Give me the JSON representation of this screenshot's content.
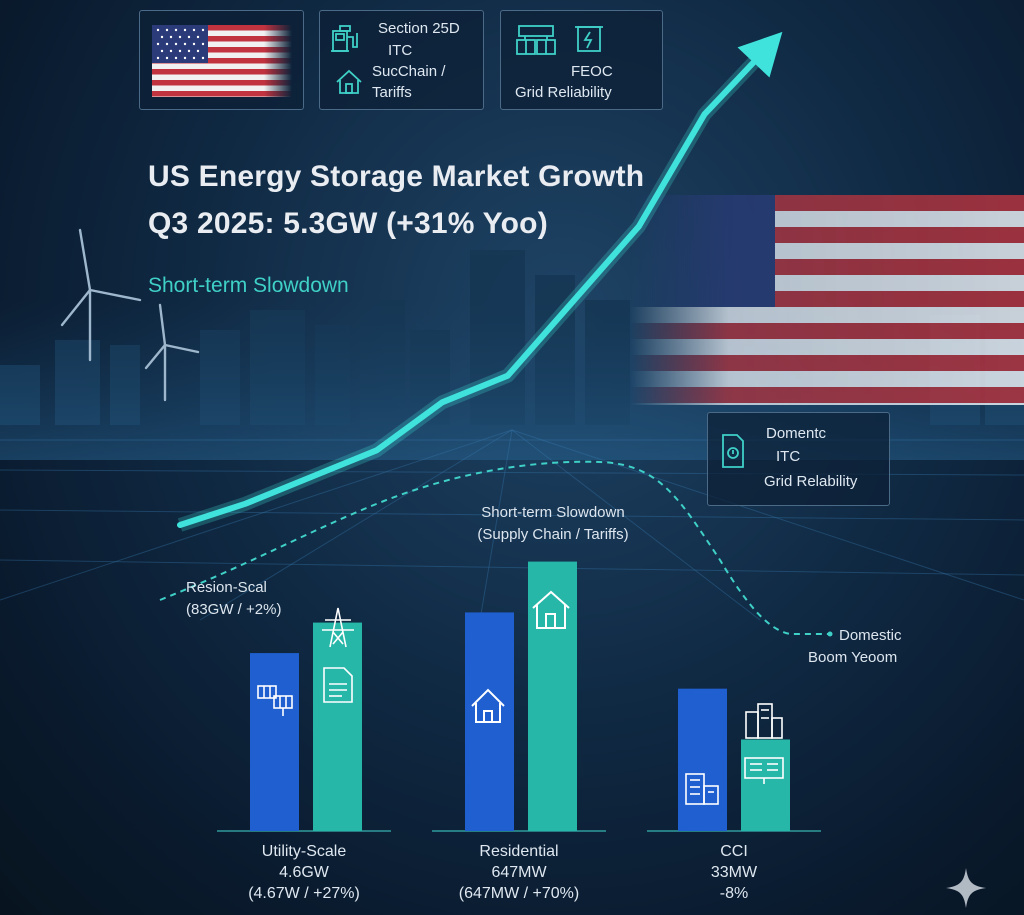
{
  "header_boxes": {
    "policy": {
      "line1": "Section 25D",
      "line2": "ITC",
      "line3": "SucChain /",
      "line4": "Tariffs"
    },
    "grid": {
      "line1": "FEOC",
      "line2": "Grid Reliability"
    }
  },
  "callout_right": {
    "line1": "Domentc",
    "line2": "ITC",
    "line3": "Grid Relability"
  },
  "title": {
    "line1": "US Energy Storage Market Growth",
    "line2": "Q3 2025: 5.3GW (+31% Yoo)"
  },
  "subtitle": "Short-term Slowdown",
  "annotations": {
    "left": {
      "line1": "Resion-Scal",
      "line2": "(83GW / +2%)"
    },
    "center": {
      "line1": "Short-term Slowdown",
      "line2": "(Supply Chain / Tariffs)"
    },
    "right": {
      "line1": "Domestic",
      "line2": "Boom Yeoom"
    }
  },
  "chart_data": {
    "type": "bar",
    "categories": [
      "Utility-Scale",
      "Residential",
      "CCI"
    ],
    "category_labels": [
      {
        "name": "Utility-Scale",
        "value": "4.6GW",
        "detail": "(4.67W / +27%)"
      },
      {
        "name": "Residential",
        "value": "647MW",
        "detail": "(647MW / +70%)"
      },
      {
        "name": "CCI",
        "value": "33MW",
        "detail": "-8%"
      }
    ],
    "series": [
      {
        "color": "#1f5fd0",
        "values": [
          3.5,
          4.3,
          2.8
        ]
      },
      {
        "color": "#27b7a8",
        "values": [
          4.1,
          5.3,
          1.8
        ]
      }
    ],
    "ylim": [
      0,
      6
    ],
    "grid": false,
    "trend": {
      "color": "#3fe3dc",
      "values": [
        1.0,
        1.4,
        1.9,
        2.4,
        3.3,
        3.8,
        5.2,
        6.6,
        8.7,
        10.0
      ]
    }
  },
  "colors": {
    "accent_cyan": "#3fe3dc",
    "bar_blue": "#1f5fd0",
    "bar_teal": "#27b7a8",
    "background": "#0d2238"
  },
  "icons": {
    "flag": "us-flag-icon",
    "sparkle": "sparkle-icon"
  }
}
